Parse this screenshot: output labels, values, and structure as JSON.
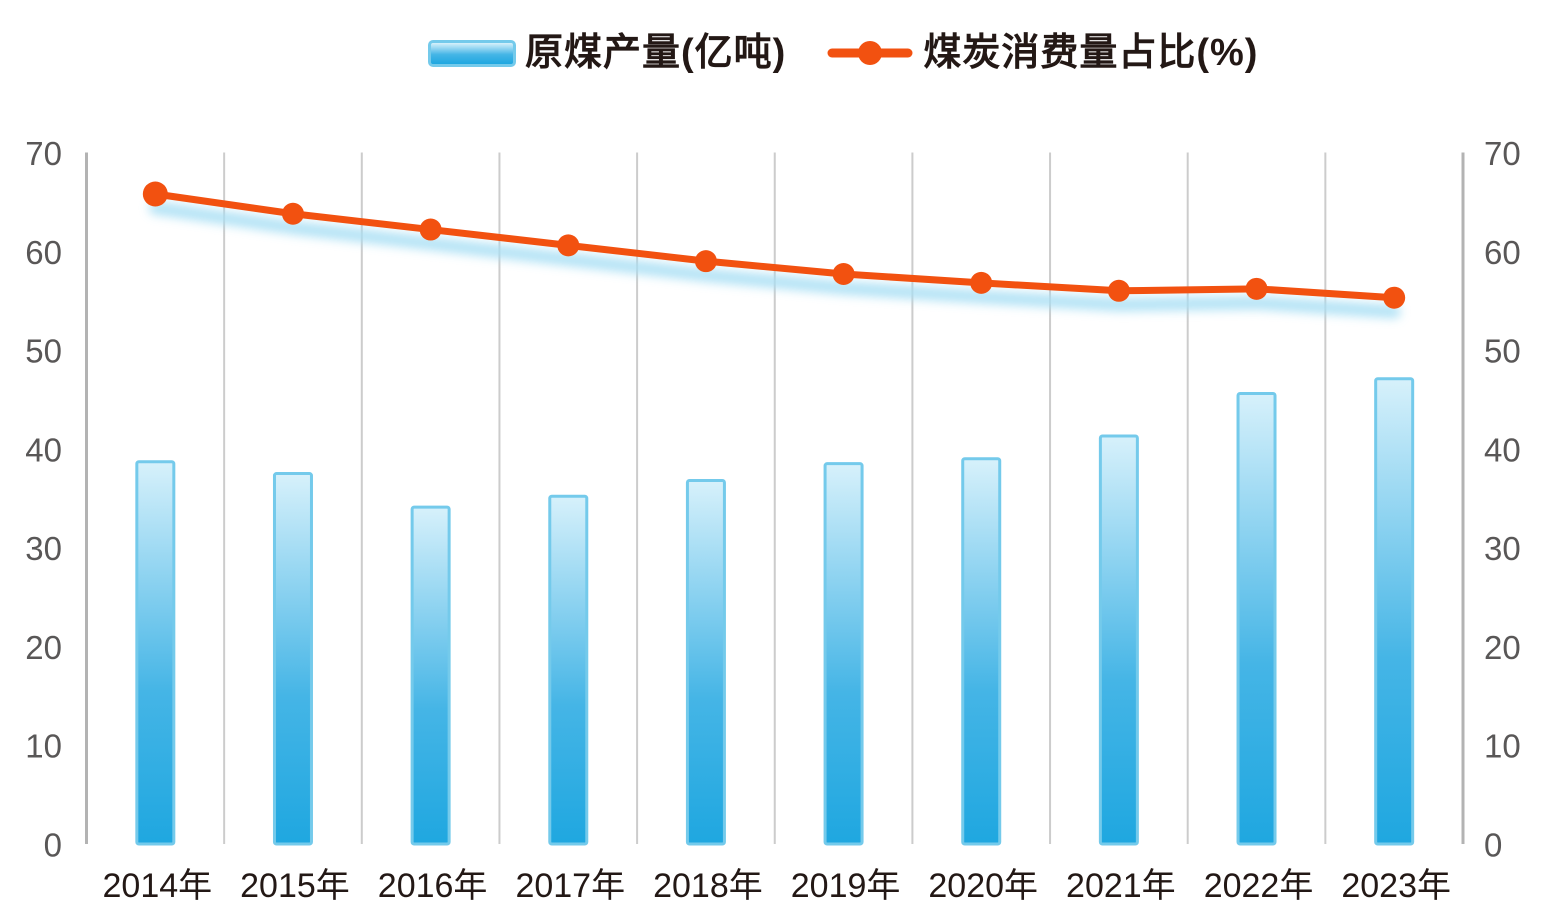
{
  "legend": {
    "bar_label": "原煤产量(亿吨)",
    "line_label": "煤炭消费量占比(%)"
  },
  "colors": {
    "bar_fill_top": "#D7F1FB",
    "bar_fill_mid": "#45B5E6",
    "bar_fill_bottom": "#1FA7E0",
    "bar_border": "#74CAEB",
    "line": "#F25110",
    "line_glow": "#A9DFF4",
    "grid": "#CCCCCC",
    "axis": "#B3B3B3",
    "ytick_text": "#595757",
    "xtick_text": "#231815",
    "legend_text": "#231815"
  },
  "chart_data": {
    "type": "bar",
    "categories": [
      "2014年",
      "2015年",
      "2016年",
      "2017年",
      "2018年",
      "2019年",
      "2020年",
      "2021年",
      "2022年",
      "2023年"
    ],
    "series": [
      {
        "name": "原煤产量(亿吨)",
        "type": "bar",
        "axis": "left",
        "values": [
          38.7,
          37.5,
          34.1,
          35.2,
          36.8,
          38.5,
          39.0,
          41.3,
          45.6,
          47.1
        ]
      },
      {
        "name": "煤炭消费量占比(%)",
        "type": "line",
        "axis": "right",
        "values": [
          65.8,
          63.8,
          62.2,
          60.6,
          59.0,
          57.7,
          56.8,
          56.0,
          56.2,
          55.3
        ]
      }
    ],
    "title": "",
    "xlabel": "",
    "ylabel": "",
    "ylim": [
      0,
      70
    ],
    "yticks": [
      0,
      10,
      20,
      30,
      40,
      50,
      60,
      70
    ],
    "dual_axis": true,
    "grid": "vertical-only",
    "legend_position": "top-center"
  }
}
